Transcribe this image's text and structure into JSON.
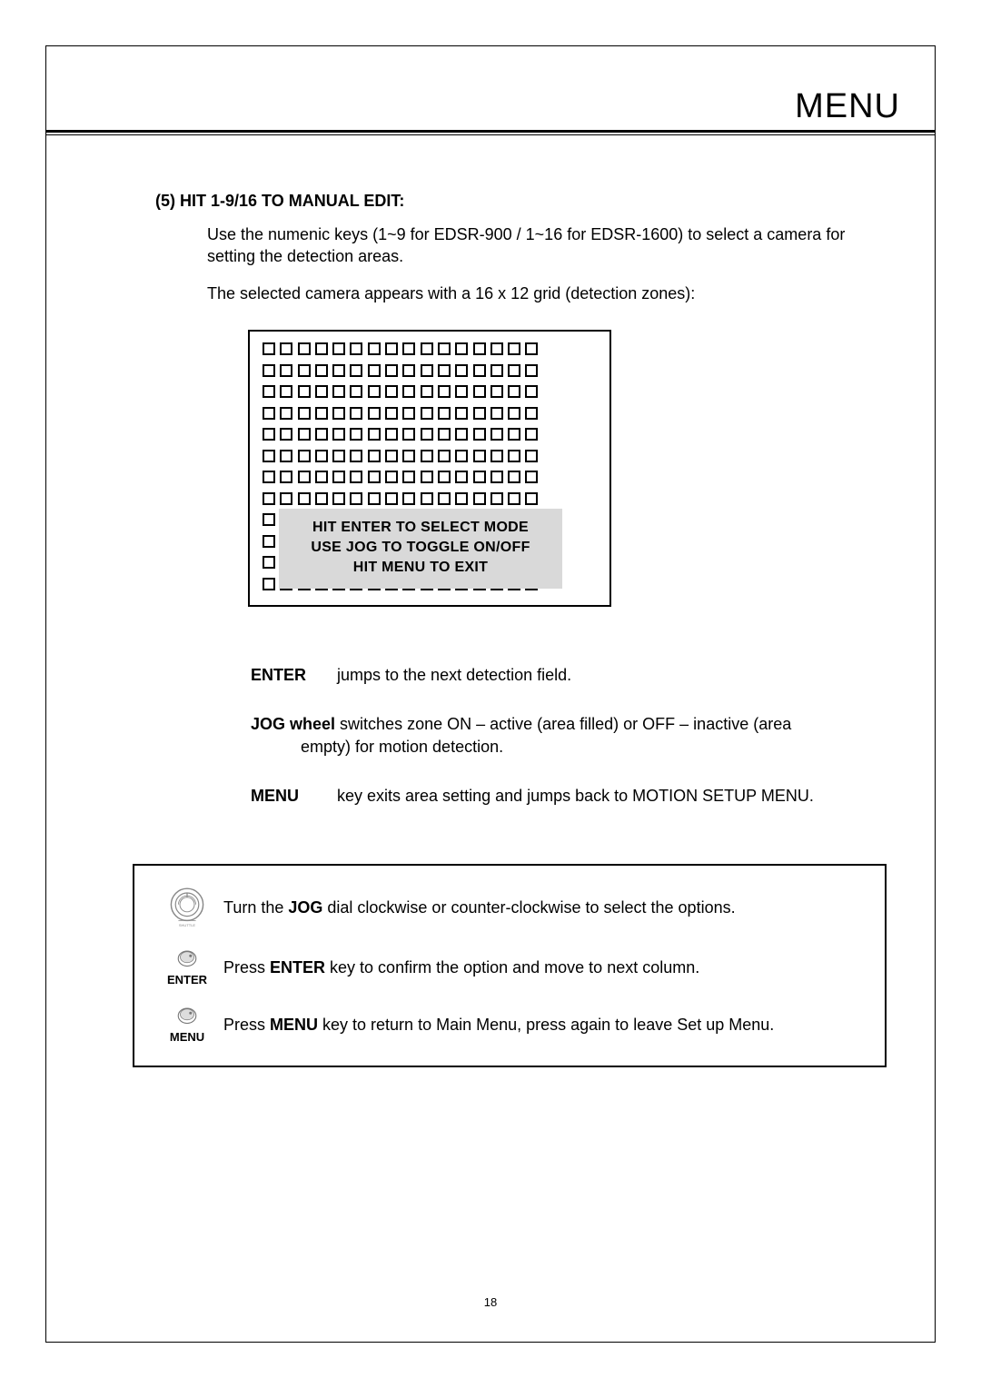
{
  "header": {
    "title": "MENU"
  },
  "section5": {
    "heading": "(5) HIT 1-9/16 TO MANUAL EDIT:",
    "p1": "Use the numenic keys (1~9 for EDSR-900 / 1~16 for EDSR-1600) to select a camera for setting the detection areas.",
    "p2": "The selected camera appears with a 16 x 12 grid (detection zones):"
  },
  "grid": {
    "cols": 16,
    "rows": 12,
    "overlay": {
      "line1": "HIT ENTER TO SELECT MODE",
      "line2": "USE JOG TO TOGGLE ON/OFF",
      "line3": "HIT MENU TO EXIT",
      "bg": "#d9d9d9"
    }
  },
  "defs": {
    "enter": {
      "term": "ENTER",
      "body": "jumps to the next detection field."
    },
    "jog": {
      "line1_pre": "JOG wheel",
      "line1_rest": " switches zone ON – active (area filled) or OFF – inactive (area",
      "line2": "empty) for motion detection."
    },
    "menu": {
      "term": "MENU",
      "body": "key exits area setting and jumps back to MOTION SETUP MENU."
    }
  },
  "panel": {
    "row1": {
      "pre": "Turn the ",
      "bold": "JOG",
      "post": " dial clockwise or counter-clockwise to select the options."
    },
    "row2": {
      "label": "ENTER",
      "pre": "Press ",
      "bold": "ENTER",
      "post": " key to confirm the option and move to next column."
    },
    "row3": {
      "label": "MENU",
      "pre": "Press ",
      "bold": "MENU",
      "post": " key to return to Main Menu, press again to leave Set up Menu."
    }
  },
  "page_number": "18",
  "style": {
    "font_body": 18,
    "font_heading": 18,
    "font_header": 38,
    "font_overlay": 16,
    "font_icon_label": 13,
    "font_pagenum": 13,
    "color_text": "#000000",
    "color_bg": "#ffffff",
    "color_overlay_bg": "#d9d9d9",
    "border_width": 2
  }
}
